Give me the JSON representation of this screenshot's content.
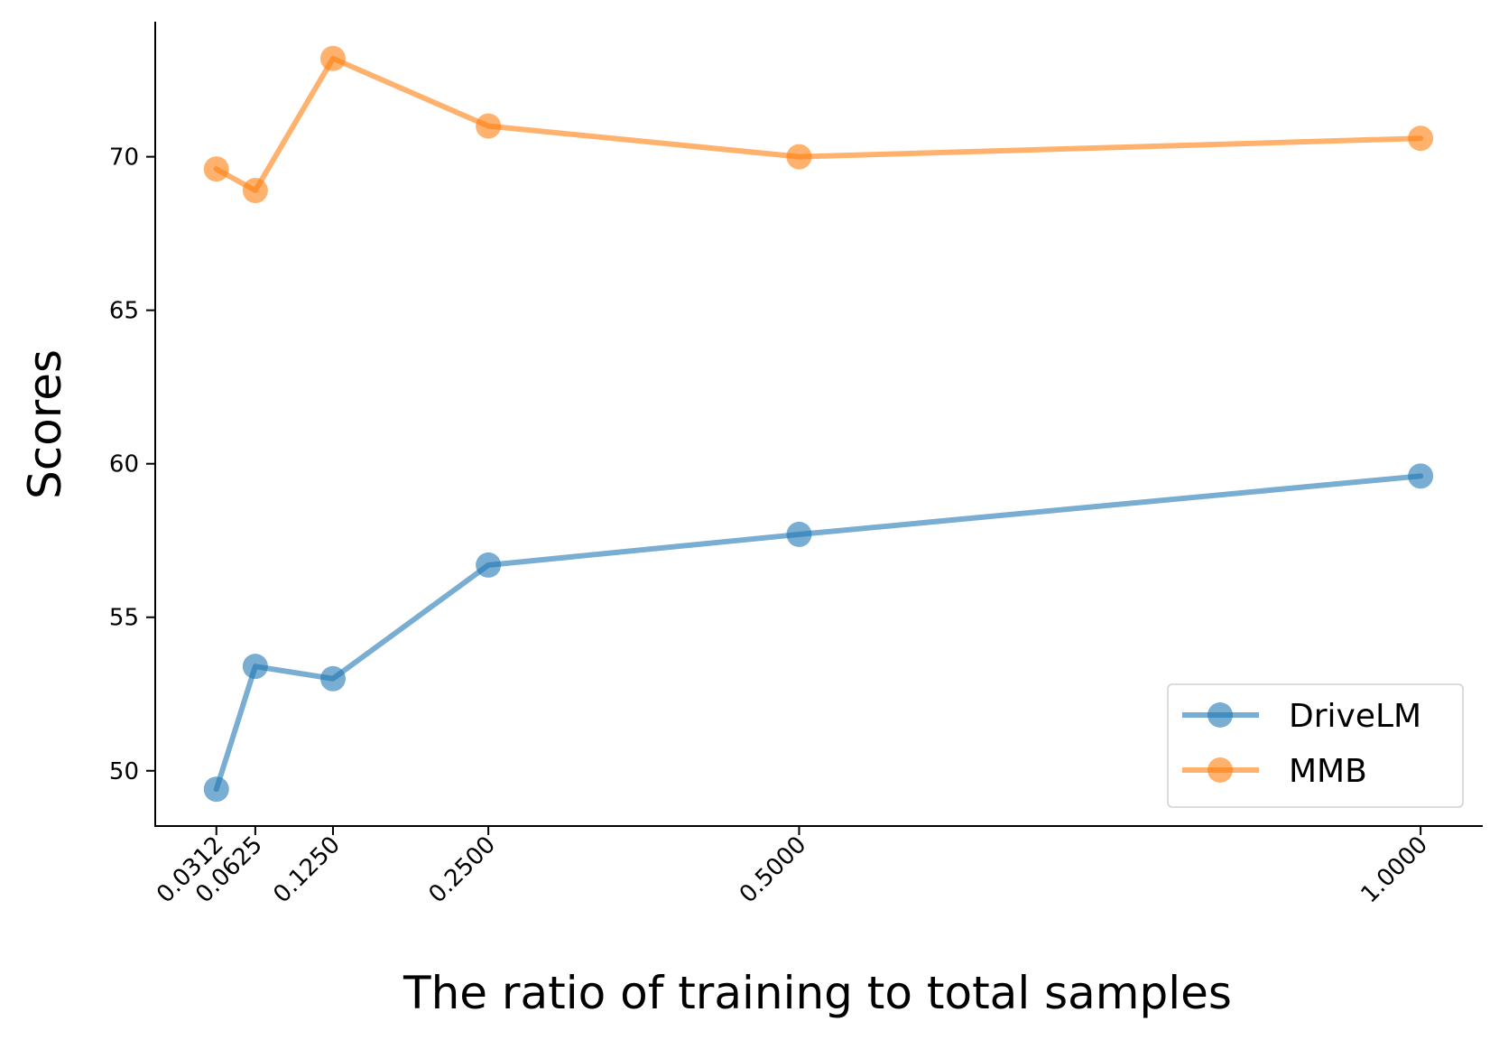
{
  "chart_data": {
    "type": "line",
    "x": [
      0.0312,
      0.0625,
      0.125,
      0.25,
      0.5,
      1.0
    ],
    "x_tick_labels": [
      "0.0312",
      "0.0625",
      "0.1250",
      "0.2500",
      "0.5000",
      "1.0000"
    ],
    "y_ticks": [
      50,
      55,
      60,
      65,
      70
    ],
    "y_tick_labels": [
      "50",
      "55",
      "60",
      "65",
      "70"
    ],
    "xlabel": "The ratio of training to total samples",
    "ylabel": "Scores",
    "xlim": [
      -0.018,
      1.05
    ],
    "ylim": [
      48.2,
      74.4
    ],
    "grid": false,
    "legend_position": "lower-right",
    "series": [
      {
        "name": "DriveLM",
        "color": "#1f77b4",
        "values": [
          49.4,
          53.4,
          53.0,
          56.7,
          57.7,
          59.6
        ]
      },
      {
        "name": "MMB",
        "color": "#ff7f0e",
        "values": [
          69.6,
          68.9,
          73.2,
          71.0,
          70.0,
          70.6
        ]
      }
    ]
  }
}
